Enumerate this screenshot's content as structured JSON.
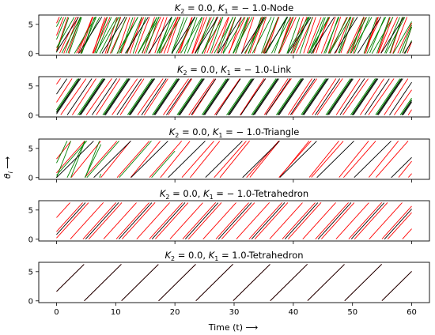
{
  "figure": {
    "ylabel": "θ_i ⟶",
    "xlabel": "Time (t) ⟶",
    "colors": {
      "red": "#ff0000",
      "green": "#008000",
      "black": "#000000"
    }
  },
  "chart_data": [
    {
      "type": "line",
      "title": "K_2 = 0.0, K_1 = −1.0-Node",
      "title_parts": [
        "K",
        "2",
        " = 0.0, ",
        "K",
        "1",
        " = − 1.0-Node"
      ],
      "xlim": [
        0,
        60
      ],
      "ylim": [
        0,
        6.283
      ],
      "x_ticks": [
        0,
        20,
        40,
        60
      ],
      "y_ticks": [
        0,
        5
      ],
      "series": [
        {
          "color": "#ff0000",
          "slope": 3.0,
          "phase": 0.5
        },
        {
          "color": "#ff0000",
          "slope": 2.6,
          "phase": 3.1
        },
        {
          "color": "#ff0000",
          "slope": 2.2,
          "phase": 5.2
        },
        {
          "color": "#008000",
          "slope": 2.9,
          "phase": 0.2
        },
        {
          "color": "#008000",
          "slope": 2.45,
          "phase": 2.4
        },
        {
          "color": "#008000",
          "slope": 1.95,
          "phase": 4.6
        },
        {
          "color": "#008000",
          "slope": 1.75,
          "phase": 1.0
        },
        {
          "color": "#000000",
          "slope": 1.6,
          "phase": 0.3
        }
      ]
    },
    {
      "type": "line",
      "title": "K_2 = 0.0, K_1 = −1.0-Link",
      "title_parts": [
        "K",
        "2",
        " = 0.0, ",
        "K",
        "1",
        " = − 1.0-Link"
      ],
      "xlim": [
        0,
        60
      ],
      "ylim": [
        0,
        6.283
      ],
      "x_ticks": [
        0,
        20,
        40,
        60
      ],
      "y_ticks": [
        0,
        5
      ],
      "series": [
        {
          "color": "#ff0000",
          "slope": 1.55,
          "phase": 2.2
        },
        {
          "color": "#ff0000",
          "slope": 1.45,
          "phase": 5.3
        },
        {
          "color": "#008000",
          "slope": 1.5,
          "phase": 0.6
        },
        {
          "color": "#008000",
          "slope": 1.5,
          "phase": 0.9
        },
        {
          "color": "#000000",
          "slope": 1.5,
          "phase": 0.2
        },
        {
          "color": "#000000",
          "slope": 1.5,
          "phase": 0.45
        },
        {
          "color": "#000000",
          "slope": 1.5,
          "phase": 3.6
        }
      ]
    },
    {
      "type": "line",
      "title": "K_2 = 0.0, K_1 = −1.0-Triangle",
      "title_parts": [
        "K",
        "2",
        " = 0.0, ",
        "K",
        "1",
        " = − 1.0-Triangle"
      ],
      "xlim": [
        0,
        60
      ],
      "ylim": [
        0,
        6.283
      ],
      "x_ticks": [
        0,
        20,
        40,
        60
      ],
      "y_ticks": [
        0,
        5
      ],
      "series": [
        {
          "color": "#ff0000",
          "slope": 1.15,
          "phase": 0.8
        },
        {
          "color": "#ff0000",
          "slope": 1.25,
          "phase": 3.2
        },
        {
          "color": "#008000",
          "slope": 2.6,
          "phase": 0.0,
          "t_end": 7.5
        },
        {
          "color": "#008000",
          "slope": 2.1,
          "phase": 2.5,
          "t_end": 7.5
        },
        {
          "color": "#008000",
          "slope": 1.15,
          "phase": 0.4,
          "t_end": 20
        },
        {
          "color": "#000000",
          "slope": 1.0,
          "phase": 0.0
        }
      ]
    },
    {
      "type": "line",
      "title": "K_2 = 0.0, K_1 = −1.0-Tetrahedron",
      "title_parts": [
        "K",
        "2",
        " = 0.0, ",
        "K",
        "1",
        " = − 1.0-Tetrahedron"
      ],
      "xlim": [
        0,
        60
      ],
      "ylim": [
        0,
        6.283
      ],
      "x_ticks": [
        0,
        20,
        40,
        60
      ],
      "y_ticks": [
        0,
        5
      ],
      "series": [
        {
          "color": "#ff0000",
          "slope": 1.12,
          "phase": 3.7
        },
        {
          "color": "#ff0000",
          "slope": 1.12,
          "phase": 1.3
        },
        {
          "color": "#ff0000",
          "slope": 1.12,
          "phase": 0.2
        },
        {
          "color": "#000000",
          "slope": 1.12,
          "phase": 0.8
        }
      ]
    },
    {
      "type": "line",
      "title": "K_2 = 0.0, K_1 = 1.0-Tetrahedron",
      "title_parts": [
        "K",
        "2",
        " = 0.0, ",
        "K",
        "1",
        " = 1.0-Tetrahedron"
      ],
      "xlim": [
        0,
        60
      ],
      "ylim": [
        0,
        6.283
      ],
      "x_ticks": [
        0,
        10,
        20,
        30,
        40,
        50,
        60
      ],
      "y_ticks": [
        0,
        5
      ],
      "series": [
        {
          "color": "#ff0000",
          "slope": 1.0,
          "phase": 1.6
        },
        {
          "color": "#000000",
          "slope": 1.0,
          "phase": 1.6
        }
      ]
    }
  ]
}
